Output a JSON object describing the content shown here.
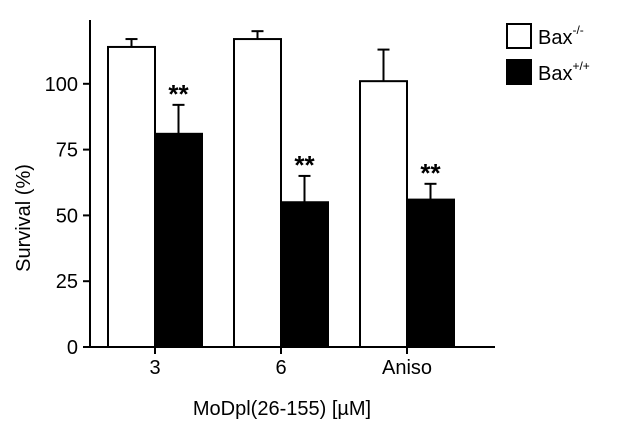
{
  "chart_data": {
    "type": "bar",
    "title": "",
    "xlabel": "MoDpl(26-155) [µM]",
    "ylabel": "Survival (%)",
    "ylim": [
      0,
      125
    ],
    "yticks": [
      0,
      25,
      50,
      75,
      100
    ],
    "categories": [
      "3",
      "6",
      "Aniso"
    ],
    "legend_position": "top-right",
    "series": [
      {
        "name": "Bax",
        "superscript": "-/-",
        "color": "#ffffff",
        "values": [
          114,
          117,
          101
        ],
        "errors": [
          3,
          3,
          12
        ],
        "significance": [
          "",
          "",
          ""
        ]
      },
      {
        "name": "Bax",
        "superscript": "+/+",
        "color": "#000000",
        "values": [
          81,
          55,
          56
        ],
        "errors": [
          11,
          10,
          6
        ],
        "significance": [
          "**",
          "**",
          "**"
        ]
      }
    ]
  }
}
